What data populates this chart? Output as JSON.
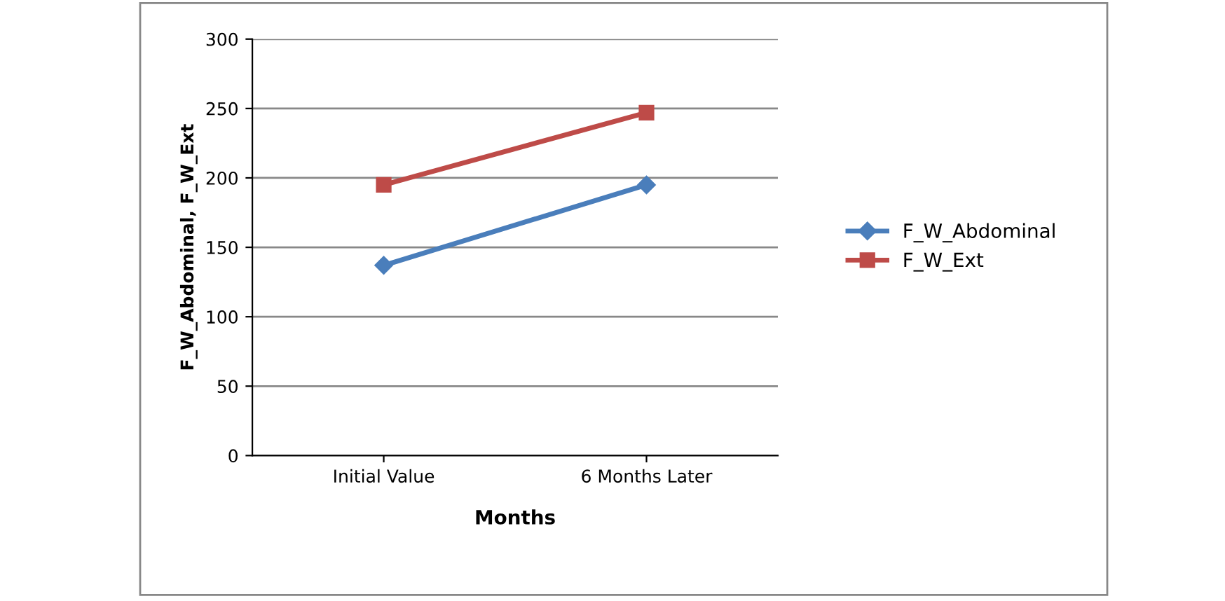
{
  "chart_data": {
    "type": "line",
    "xlabel": "Months",
    "ylabel": "F_W_Abdominal, F_W_Ext",
    "categories": [
      "Initial Value",
      "6 Months Later"
    ],
    "series": [
      {
        "name": "F_W_Abdominal",
        "color": "#4a7ebb",
        "marker": "diamond",
        "values": [
          137,
          195
        ]
      },
      {
        "name": "F_W_Ext",
        "color": "#be4b48",
        "marker": "square",
        "values": [
          195,
          247
        ]
      }
    ],
    "ylim": [
      0,
      300
    ],
    "yticks": [
      0,
      50,
      100,
      150,
      200,
      250,
      300
    ],
    "grid": "y",
    "legend": "right"
  }
}
